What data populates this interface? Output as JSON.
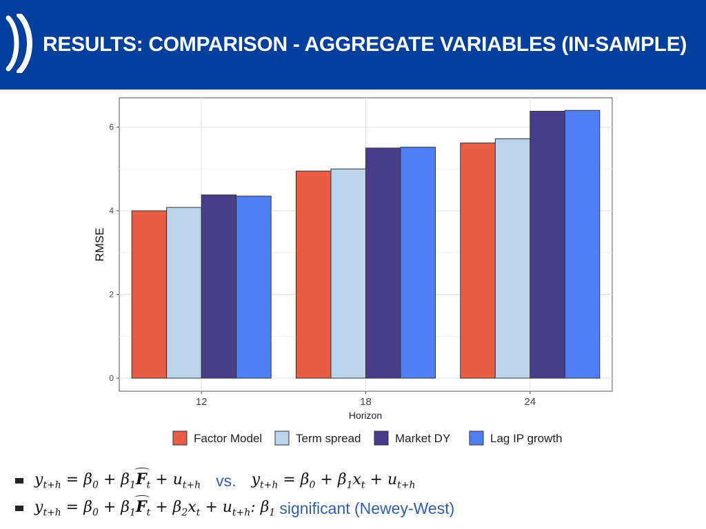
{
  "header": {
    "title": "RESULTS: COMPARISON - AGGREGATE VARIABLES (IN-SAMPLE)",
    "background": "#003f9c",
    "logo_icon": "double-bracket-logo-icon"
  },
  "chart_data": {
    "type": "bar",
    "categories": [
      "12",
      "18",
      "24"
    ],
    "series": [
      {
        "name": "Factor Model",
        "color": "#e85d45",
        "values": [
          4.0,
          4.95,
          5.62
        ]
      },
      {
        "name": "Term spread",
        "color": "#bcd3ec",
        "values": [
          4.08,
          5.0,
          5.72
        ]
      },
      {
        "name": "Market DY",
        "color": "#483d8b",
        "values": [
          4.38,
          5.5,
          6.38
        ]
      },
      {
        "name": "Lag IP growth",
        "color": "#4f7ef5",
        "values": [
          4.35,
          5.52,
          6.4
        ]
      }
    ],
    "xlabel": "Horizon",
    "ylabel": "RMSE",
    "ylim": [
      0,
      6.7
    ],
    "yticks": [
      "0",
      "2",
      "4",
      "6"
    ],
    "grid": true,
    "legend_position": "bottom"
  },
  "bullets": [
    {
      "eq1": [
        "y",
        "t+h",
        " = β",
        "0",
        " + β",
        "1",
        "F",
        "t",
        " + u",
        "t+h"
      ],
      "vs": "vs.",
      "eq2": [
        "y",
        "t+h",
        " = β",
        "0",
        " + β",
        "1",
        "x",
        "t",
        " + u",
        "t+h"
      ]
    },
    {
      "eq": [
        "y",
        "t+h",
        " = β",
        "0",
        " + β",
        "1",
        "F",
        "t",
        " + β",
        "2",
        "x",
        "t",
        " + u",
        "t+h"
      ],
      "sep": " : β",
      "sep_sub": "1",
      "note": "significant (Newey-West)"
    }
  ]
}
